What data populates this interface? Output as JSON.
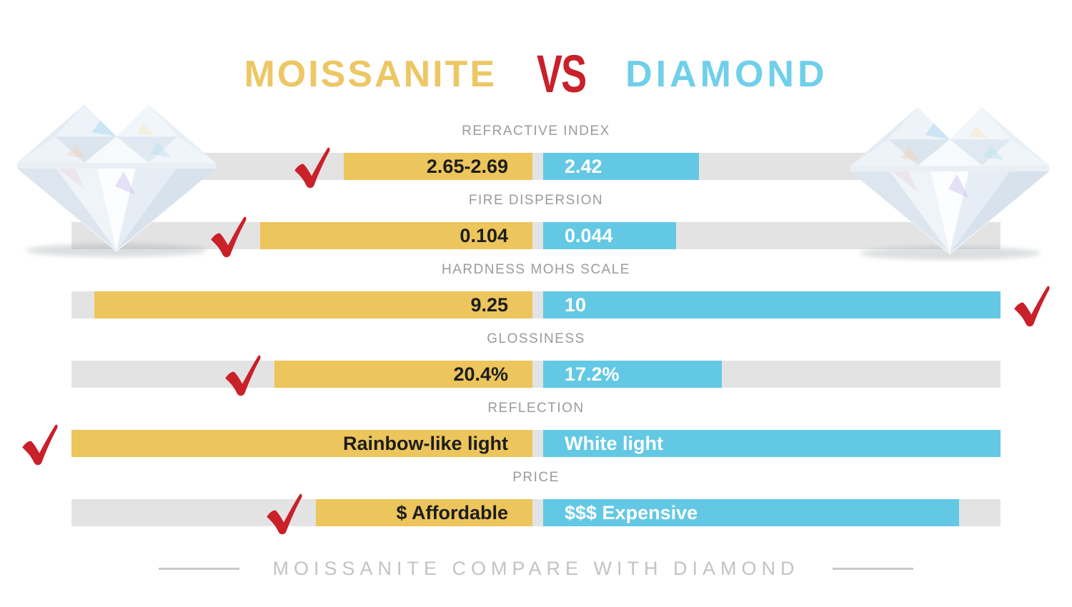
{
  "title": {
    "moissanite": "MOISSANITE",
    "vs": "VS",
    "diamond": "DIAMOND"
  },
  "footer": {
    "caption": "MOISSANITE COMPARE WITH DIAMOND"
  },
  "icons": {
    "winner_check": "red-check-mark",
    "gem_left": "moissanite-gem-photo",
    "gem_right": "diamond-gem-photo"
  },
  "colors": {
    "gold_title": "#ecc764",
    "gold_bar": "#ecc55c",
    "blue_title": "#70cfea",
    "blue_bar": "#63c8e4",
    "red": "#c9202a",
    "track_gray": "#e3e3e3",
    "label_gray": "#9b9b9b",
    "footer_gray": "#c3c3c3",
    "dark_text": "#1d1d1d"
  },
  "chart_data": {
    "type": "bar",
    "title": "MOISSANITE VS DIAMOND",
    "subtitle": "MOISSANITE COMPARE WITH DIAMOND",
    "orientation": "horizontal-paired",
    "categories": [
      "REFRACTIVE INDEX",
      "FIRE DISPERSION",
      "HARDNESS MOHS SCALE",
      "GLOSSINESS",
      "REFLECTION",
      "PRICE"
    ],
    "series": [
      {
        "name": "Moissanite",
        "color": "#ecc55c",
        "labels": [
          "2.65-2.69",
          "0.104",
          "9.25",
          "20.4%",
          "Rainbow-like light",
          "$ Affordable"
        ],
        "bar_fraction": [
          0.41,
          0.59,
          0.95,
          0.56,
          1.0,
          0.47
        ]
      },
      {
        "name": "Diamond",
        "color": "#63c8e4",
        "labels": [
          "2.42",
          "0.044",
          "10",
          "17.2%",
          "White light",
          "$$$ Expensive"
        ],
        "bar_fraction": [
          0.34,
          0.29,
          1.0,
          0.39,
          1.0,
          0.91
        ]
      }
    ],
    "winner_per_category": [
      "moissanite",
      "moissanite",
      "diamond",
      "moissanite",
      "moissanite",
      "moissanite"
    ],
    "legend_position": "none",
    "grid": false
  }
}
